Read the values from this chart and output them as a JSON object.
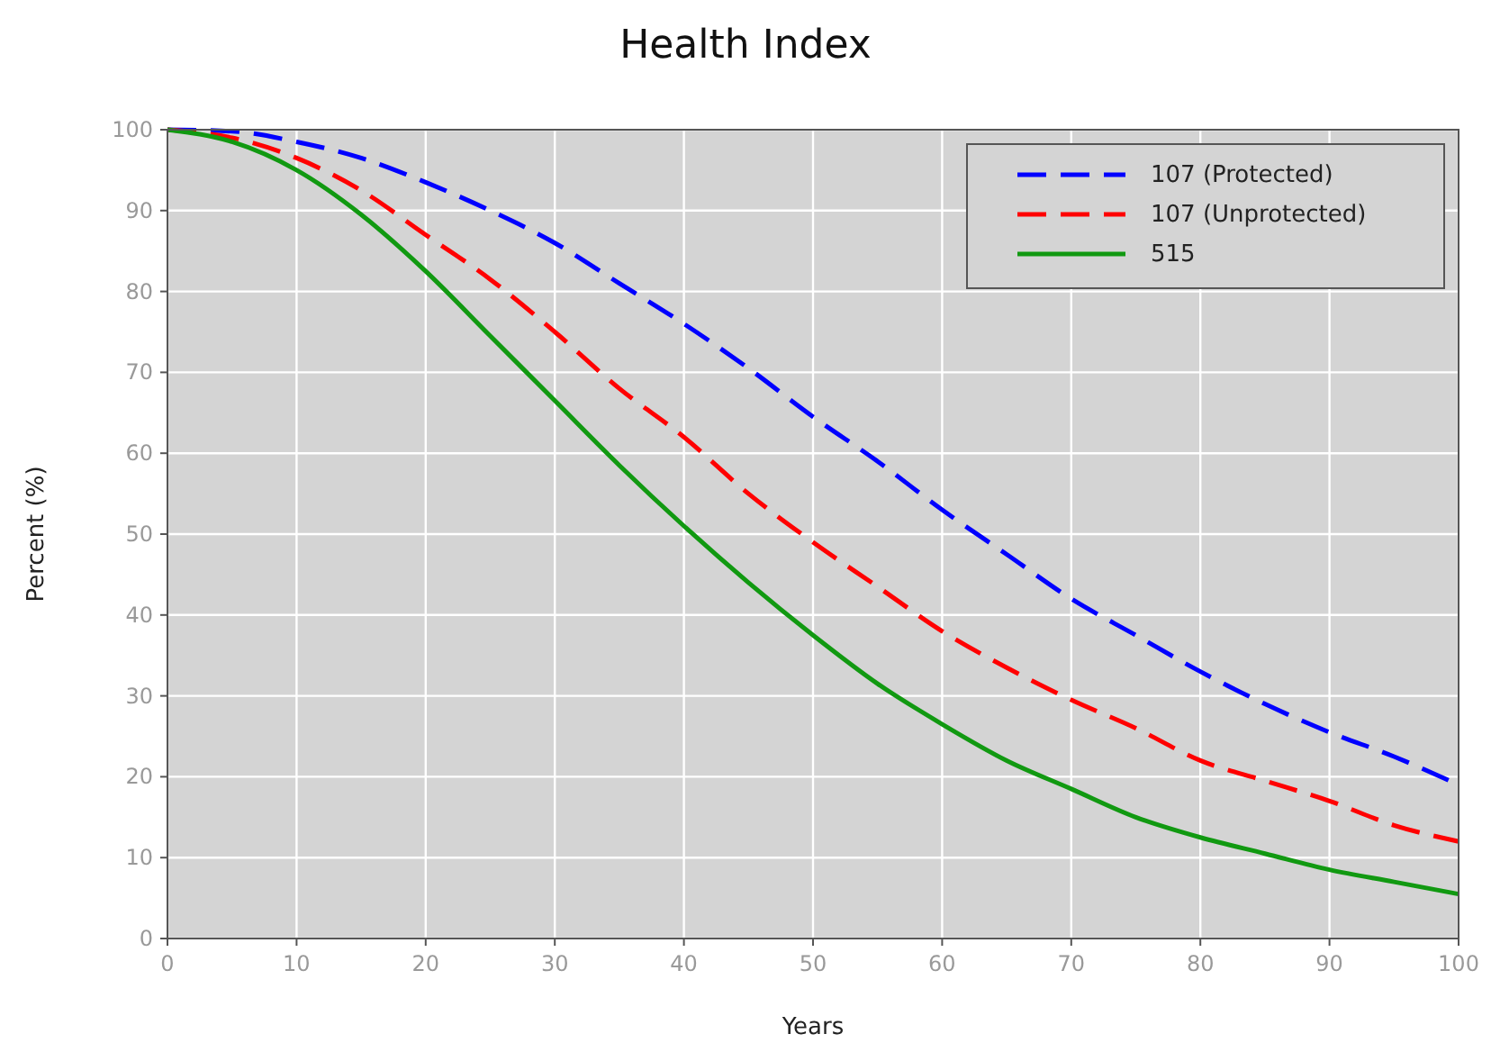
{
  "chart_data": {
    "type": "line",
    "title": "Health Index",
    "xlabel": "Years",
    "ylabel": "Percent (%)",
    "x": [
      0,
      5,
      10,
      15,
      20,
      25,
      30,
      35,
      40,
      45,
      50,
      55,
      60,
      65,
      70,
      75,
      80,
      85,
      90,
      95,
      100
    ],
    "series": [
      {
        "name": "107 (Protected)",
        "color": "#0000ff",
        "line_style": "dashed",
        "values": [
          100,
          99.8,
          98.5,
          96.5,
          93.5,
          90,
          86,
          81,
          76,
          70.5,
          64.5,
          59,
          53,
          47.5,
          42,
          37.5,
          33,
          29,
          25.5,
          22.5,
          19
        ]
      },
      {
        "name": "107 (Unprotected)",
        "color": "#ff0000",
        "line_style": "dashed",
        "values": [
          100,
          99,
          96.5,
          92.5,
          87,
          81.5,
          75,
          68,
          62,
          55,
          49,
          43.5,
          38,
          33.5,
          29.5,
          26,
          22,
          19.5,
          17,
          14,
          12
        ]
      },
      {
        "name": "515",
        "color": "#119911",
        "line_style": "solid",
        "values": [
          100,
          98.5,
          95,
          89.5,
          82.5,
          74.5,
          66.5,
          58.5,
          51,
          44,
          37.5,
          31.5,
          26.5,
          22,
          18.5,
          15,
          12.5,
          10.5,
          8.5,
          7,
          5.5
        ]
      }
    ],
    "xlim": [
      0,
      100
    ],
    "xticks": [
      0,
      10,
      20,
      30,
      40,
      50,
      60,
      70,
      80,
      90,
      100
    ],
    "ylim": [
      0,
      100
    ],
    "yticks": [
      0,
      10,
      20,
      30,
      40,
      50,
      60,
      70,
      80,
      90,
      100
    ],
    "grid": true,
    "legend": "top right"
  }
}
